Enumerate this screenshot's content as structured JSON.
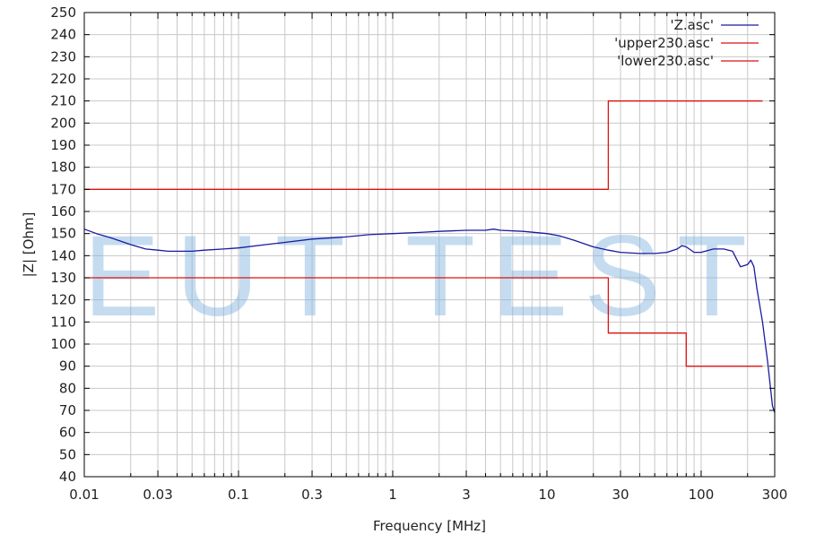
{
  "watermark": "EUT TEST",
  "chart_data": {
    "type": "line",
    "xlabel": "Frequency [MHz]",
    "ylabel": "|Z| [Ohm]",
    "x_scale": "log",
    "xlim": [
      0.01,
      300
    ],
    "ylim": [
      40,
      250
    ],
    "x_ticks": [
      {
        "value": 0.01,
        "label": "0.01"
      },
      {
        "value": 0.03,
        "label": "0.03"
      },
      {
        "value": 0.1,
        "label": "0.1"
      },
      {
        "value": 0.3,
        "label": "0.3"
      },
      {
        "value": 1,
        "label": "1"
      },
      {
        "value": 3,
        "label": "3"
      },
      {
        "value": 10,
        "label": "10"
      },
      {
        "value": 30,
        "label": "30"
      },
      {
        "value": 100,
        "label": "100"
      },
      {
        "value": 300,
        "label": "300"
      }
    ],
    "y_ticks": [
      40,
      50,
      60,
      70,
      80,
      90,
      100,
      110,
      120,
      130,
      140,
      150,
      160,
      170,
      180,
      190,
      200,
      210,
      220,
      230,
      240,
      250
    ],
    "grid": true,
    "legend": "top-right",
    "series": [
      {
        "name": "'Z.asc'",
        "color": "#1a1aa0",
        "x": [
          0.01,
          0.012,
          0.015,
          0.02,
          0.025,
          0.03,
          0.035,
          0.04,
          0.05,
          0.06,
          0.08,
          0.1,
          0.15,
          0.2,
          0.3,
          0.5,
          0.7,
          1,
          1.5,
          2,
          3,
          4,
          4.5,
          5,
          7,
          10,
          12,
          15,
          20,
          25,
          30,
          40,
          50,
          60,
          70,
          75,
          80,
          90,
          100,
          120,
          140,
          160,
          180,
          200,
          210,
          220,
          230,
          250,
          270,
          290,
          300
        ],
        "y": [
          152,
          150,
          148,
          145,
          143,
          142.5,
          142,
          142,
          142,
          142.5,
          143,
          143.5,
          145,
          146,
          147.5,
          148.5,
          149.5,
          150,
          150.5,
          151,
          151.5,
          151.5,
          152,
          151.5,
          151,
          150,
          149,
          147,
          144,
          142.5,
          141.5,
          141,
          141,
          141.5,
          143,
          144.5,
          144,
          141.5,
          141.5,
          143,
          143,
          142,
          135,
          136,
          138,
          135,
          125,
          110,
          92,
          72,
          69
        ]
      },
      {
        "name": "'upper230.asc'",
        "color": "#dd1111",
        "x": [
          0.01,
          25,
          25,
          250
        ],
        "y": [
          170,
          170,
          210,
          210
        ]
      },
      {
        "name": "'lower230.asc'",
        "color": "#dd1111",
        "x": [
          0.01,
          25,
          25,
          80,
          80,
          250
        ],
        "y": [
          130,
          130,
          105,
          105,
          90,
          90
        ]
      }
    ]
  }
}
